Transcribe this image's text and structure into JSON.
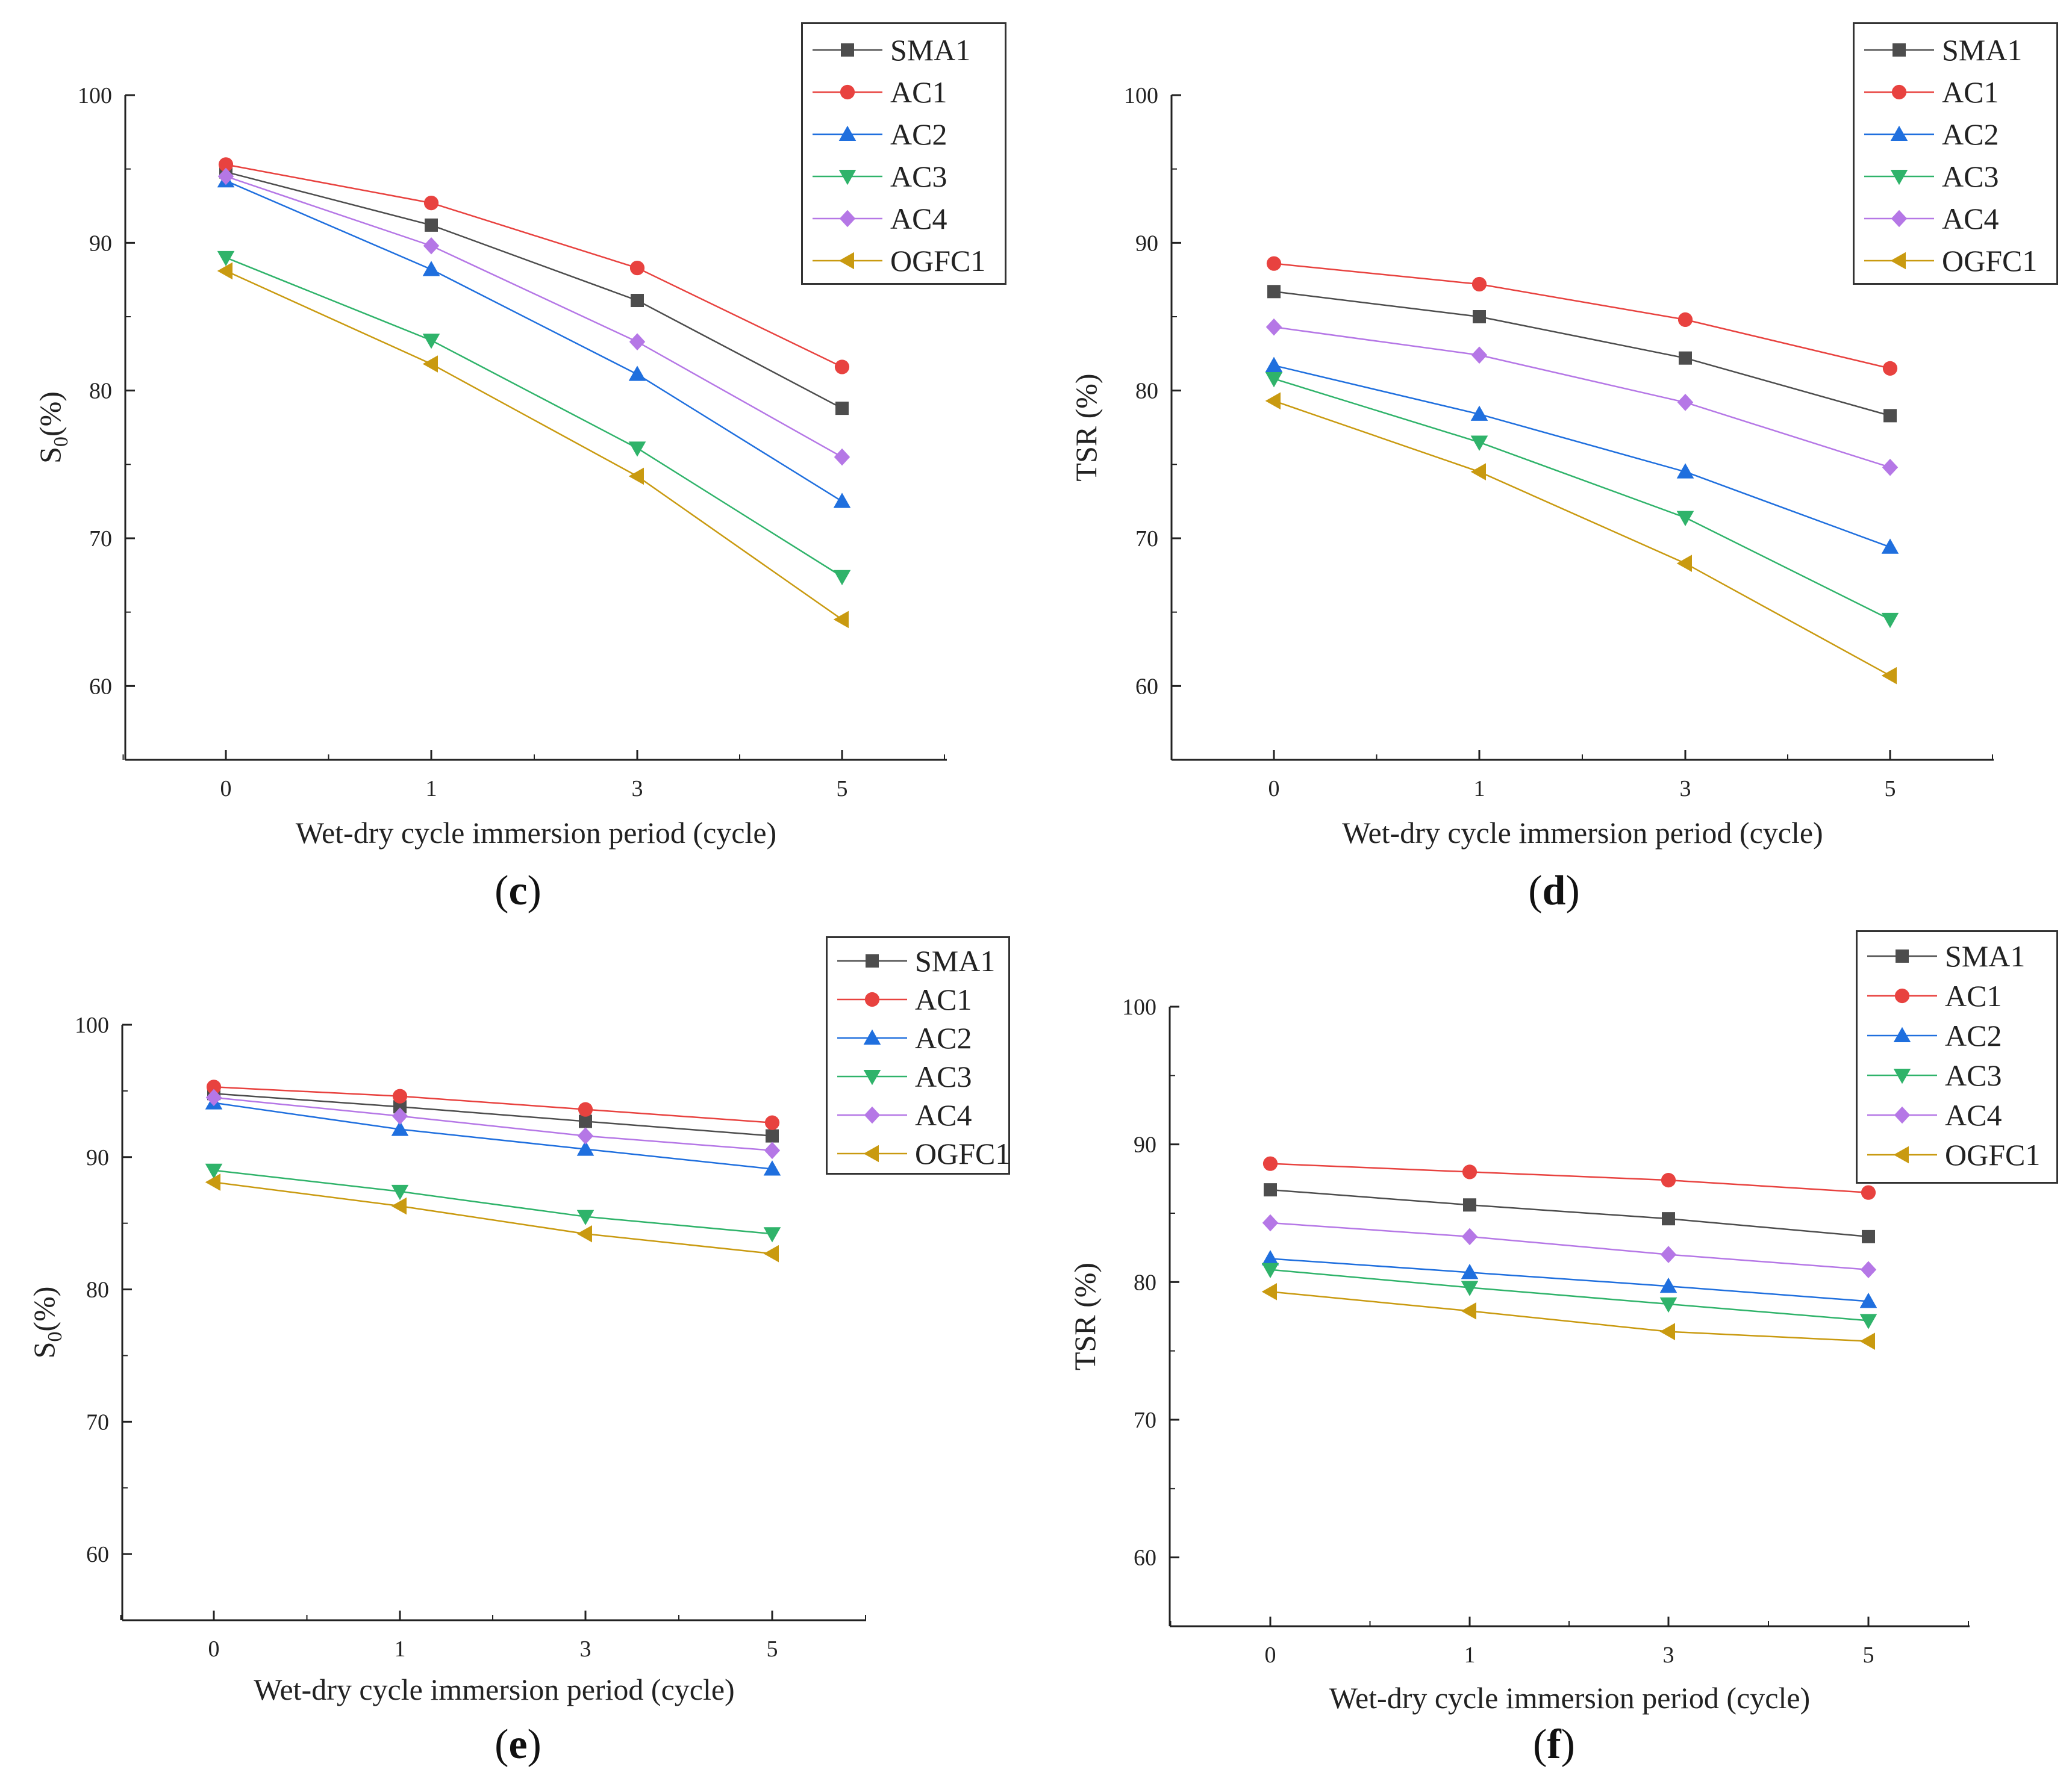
{
  "colors": {
    "SMA1": "#4d4d4d",
    "AC1": "#e8423f",
    "AC2": "#1f6fde",
    "AC3": "#2fb36a",
    "AC4": "#b577e6",
    "OGFC1": "#c99a10"
  },
  "chart_data": [
    {
      "id": "c",
      "type": "line",
      "caption_open": "(",
      "caption_letter": "c",
      "caption_close": ")",
      "xlabel": "Wet-dry cycle immersion period (cycle)",
      "ylabel_main": "S",
      "ylabel_sub": "0",
      "ylabel_rest": "(%)",
      "categories": [
        "0",
        "1",
        "3",
        "5"
      ],
      "ylim": [
        55,
        100
      ],
      "yticks": [
        60,
        70,
        80,
        90,
        100
      ],
      "series": [
        {
          "name": "SMA1",
          "marker": "square",
          "values": [
            94.8,
            91.2,
            86.1,
            78.8
          ]
        },
        {
          "name": "AC1",
          "marker": "circle",
          "values": [
            95.3,
            92.7,
            88.3,
            81.6
          ]
        },
        {
          "name": "AC2",
          "marker": "triangle-up",
          "values": [
            94.2,
            88.2,
            81.1,
            72.5
          ]
        },
        {
          "name": "AC3",
          "marker": "triangle-down",
          "values": [
            89.0,
            83.4,
            76.1,
            67.4
          ]
        },
        {
          "name": "AC4",
          "marker": "diamond",
          "values": [
            94.5,
            89.8,
            83.3,
            75.5
          ]
        },
        {
          "name": "OGFC1",
          "marker": "triangle-left",
          "values": [
            88.1,
            81.8,
            74.2,
            64.5
          ]
        }
      ]
    },
    {
      "id": "d",
      "type": "line",
      "caption_open": "(",
      "caption_letter": "d",
      "caption_close": ")",
      "xlabel": "Wet-dry cycle immersion period (cycle)",
      "ylabel_main": "TSR (%)",
      "ylabel_sub": "",
      "ylabel_rest": "",
      "categories": [
        "0",
        "1",
        "3",
        "5"
      ],
      "ylim": [
        55,
        100
      ],
      "yticks": [
        60,
        70,
        80,
        90,
        100
      ],
      "series": [
        {
          "name": "SMA1",
          "marker": "square",
          "values": [
            86.7,
            85.0,
            82.2,
            78.3
          ]
        },
        {
          "name": "AC1",
          "marker": "circle",
          "values": [
            88.6,
            87.2,
            84.8,
            81.5
          ]
        },
        {
          "name": "AC2",
          "marker": "triangle-up",
          "values": [
            81.7,
            78.4,
            74.5,
            69.4
          ]
        },
        {
          "name": "AC3",
          "marker": "triangle-down",
          "values": [
            80.8,
            76.5,
            71.4,
            64.5
          ]
        },
        {
          "name": "AC4",
          "marker": "diamond",
          "values": [
            84.3,
            82.4,
            79.2,
            74.8
          ]
        },
        {
          "name": "OGFC1",
          "marker": "triangle-left",
          "values": [
            79.3,
            74.5,
            68.3,
            60.7
          ]
        }
      ]
    },
    {
      "id": "e",
      "type": "line",
      "caption_open": "(",
      "caption_letter": "e",
      "caption_close": ")",
      "xlabel": "Wet-dry cycle immersion period (cycle)",
      "ylabel_main": "S",
      "ylabel_sub": "0",
      "ylabel_rest": "(%)",
      "categories": [
        "0",
        "1",
        "3",
        "5"
      ],
      "ylim": [
        55,
        100
      ],
      "yticks": [
        60,
        70,
        80,
        90,
        100
      ],
      "series": [
        {
          "name": "SMA1",
          "marker": "square",
          "values": [
            94.8,
            93.8,
            92.7,
            91.6
          ]
        },
        {
          "name": "AC1",
          "marker": "circle",
          "values": [
            95.3,
            94.6,
            93.6,
            92.6
          ]
        },
        {
          "name": "AC2",
          "marker": "triangle-up",
          "values": [
            94.1,
            92.1,
            90.6,
            89.1
          ]
        },
        {
          "name": "AC3",
          "marker": "triangle-down",
          "values": [
            89.0,
            87.4,
            85.5,
            84.2
          ]
        },
        {
          "name": "AC4",
          "marker": "diamond",
          "values": [
            94.5,
            93.1,
            91.6,
            90.5
          ]
        },
        {
          "name": "OGFC1",
          "marker": "triangle-left",
          "values": [
            88.1,
            86.3,
            84.2,
            82.7
          ]
        }
      ]
    },
    {
      "id": "f",
      "type": "line",
      "caption_open": "(",
      "caption_letter": "f",
      "caption_close": ")",
      "xlabel": "Wet-dry cycle immersion period (cycle)",
      "ylabel_main": "TSR (%)",
      "ylabel_sub": "",
      "ylabel_rest": "",
      "categories": [
        "0",
        "1",
        "3",
        "5"
      ],
      "ylim": [
        55,
        100
      ],
      "yticks": [
        60,
        70,
        80,
        90,
        100
      ],
      "series": [
        {
          "name": "SMA1",
          "marker": "square",
          "values": [
            86.7,
            85.6,
            84.6,
            83.3
          ]
        },
        {
          "name": "AC1",
          "marker": "circle",
          "values": [
            88.6,
            88.0,
            87.4,
            86.5
          ]
        },
        {
          "name": "AC2",
          "marker": "triangle-up",
          "values": [
            81.7,
            80.7,
            79.7,
            78.6
          ]
        },
        {
          "name": "AC3",
          "marker": "triangle-down",
          "values": [
            80.9,
            79.6,
            78.4,
            77.2
          ]
        },
        {
          "name": "AC4",
          "marker": "diamond",
          "values": [
            84.3,
            83.3,
            82.0,
            80.9
          ]
        },
        {
          "name": "OGFC1",
          "marker": "triangle-left",
          "values": [
            79.3,
            77.9,
            76.4,
            75.7
          ]
        }
      ]
    }
  ]
}
